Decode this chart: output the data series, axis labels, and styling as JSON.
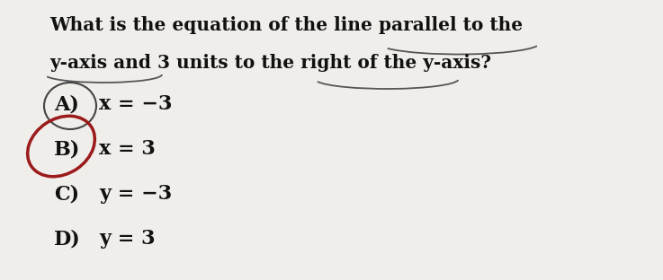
{
  "bg_color": "#f0eeeb",
  "title_line1": "What is the equation of the line parallel to the",
  "title_line2": "y-axis and 3 units to the right of the y-axis?",
  "options": [
    {
      "label": "A)",
      "equation": "x = −3"
    },
    {
      "label": "B)",
      "equation": "x = 3"
    },
    {
      "label": "C)",
      "equation": "y = −3"
    },
    {
      "label": "D)",
      "equation": "y = 3"
    }
  ],
  "font_size_title": 14.5,
  "font_size_options": 16,
  "text_color": "#111111",
  "circle_A_color": "#444444",
  "circle_B_color": "#9b1a1a",
  "arc_color": "#555555"
}
